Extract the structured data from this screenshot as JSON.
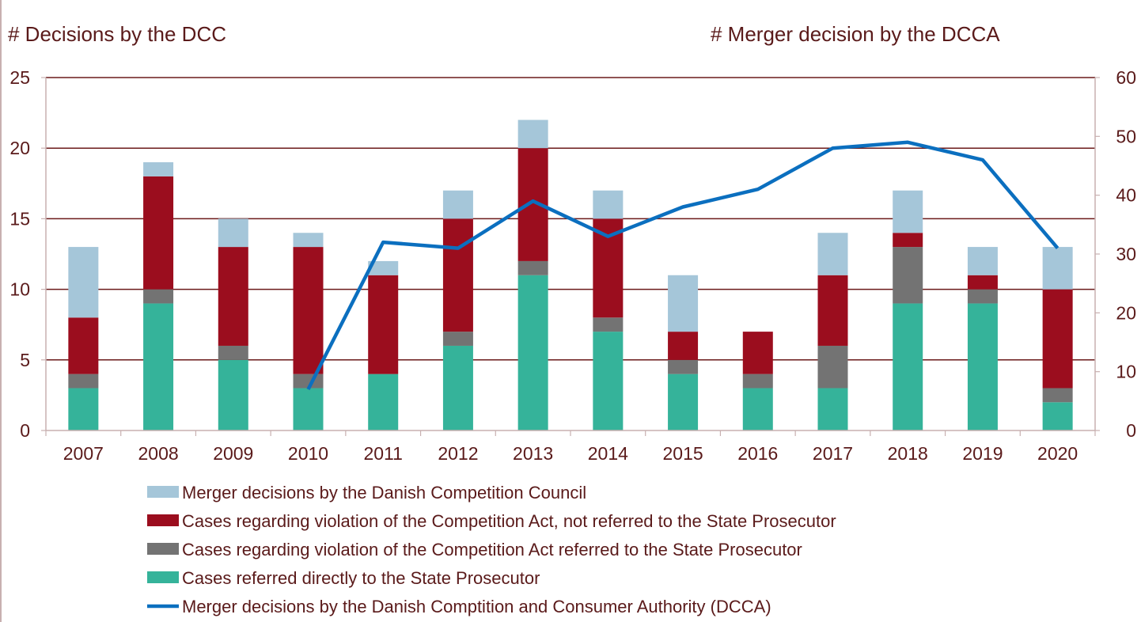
{
  "chart_data": {
    "type": "bar",
    "stacked": true,
    "left_axis_title": "# Decisions by the DCC",
    "right_axis_title": "# Merger decision by the DCCA",
    "categories": [
      "2007",
      "2008",
      "2009",
      "2010",
      "2011",
      "2012",
      "2013",
      "2014",
      "2015",
      "2016",
      "2017",
      "2018",
      "2019",
      "2020"
    ],
    "left_axis": {
      "min": 0,
      "max": 25,
      "ticks": [
        "0",
        "5",
        "10",
        "15",
        "20",
        "25"
      ]
    },
    "right_axis": {
      "min": 0,
      "max": 60,
      "ticks": [
        "0",
        "10",
        "20",
        "30",
        "40",
        "50",
        "60"
      ]
    },
    "grid": true,
    "legend_position": "bottom",
    "series": [
      {
        "name": "Cases referred directly to the State Prosecutor",
        "color": "#35b39a",
        "axis": "left",
        "values": [
          3,
          9,
          5,
          3,
          4,
          6,
          11,
          7,
          4,
          3,
          3,
          9,
          9,
          2
        ]
      },
      {
        "name": "Cases regarding violation of the Competition Act referred to the State Prosecutor",
        "color": "#737373",
        "axis": "left",
        "values": [
          1,
          1,
          1,
          1,
          0,
          1,
          1,
          1,
          1,
          1,
          3,
          4,
          1,
          1
        ]
      },
      {
        "name": "Cases regarding violation of the Competition Act, not referred to the State Prosecutor",
        "color": "#9b0d1e",
        "axis": "left",
        "values": [
          4,
          8,
          7,
          9,
          7,
          8,
          8,
          7,
          2,
          3,
          5,
          1,
          1,
          7
        ]
      },
      {
        "name": "Merger decisions by the Danish Competition Council",
        "color": "#a5c6d9",
        "axis": "left",
        "values": [
          5,
          1,
          2,
          1,
          1,
          2,
          2,
          2,
          4,
          0,
          3,
          3,
          2,
          3
        ]
      }
    ],
    "line_series": {
      "name": "Merger decisions by the Danish Comptition and Consumer Authority (DCCA)",
      "color": "#0b6fbf",
      "axis": "right",
      "x": [
        "2010",
        "2011",
        "2012",
        "2013",
        "2014",
        "2015",
        "2016",
        "2017",
        "2018",
        "2019",
        "2020"
      ],
      "values": [
        7,
        32,
        31,
        39,
        33,
        38,
        41,
        48,
        49,
        46,
        31
      ]
    },
    "legend_order": [
      "Merger decisions by the Danish Competition Council",
      "Cases regarding violation of the Competition Act, not referred to the State Prosecutor",
      "Cases regarding violation of the Competition Act referred to the State Prosecutor",
      "Cases referred directly to the State Prosecutor",
      "Merger decisions by the Danish Comptition and Consumer Authority (DCCA)"
    ],
    "colors": {
      "grid": "#6b1a1a",
      "axis": "#c8b0b0",
      "text": "#5a1a1a"
    }
  }
}
